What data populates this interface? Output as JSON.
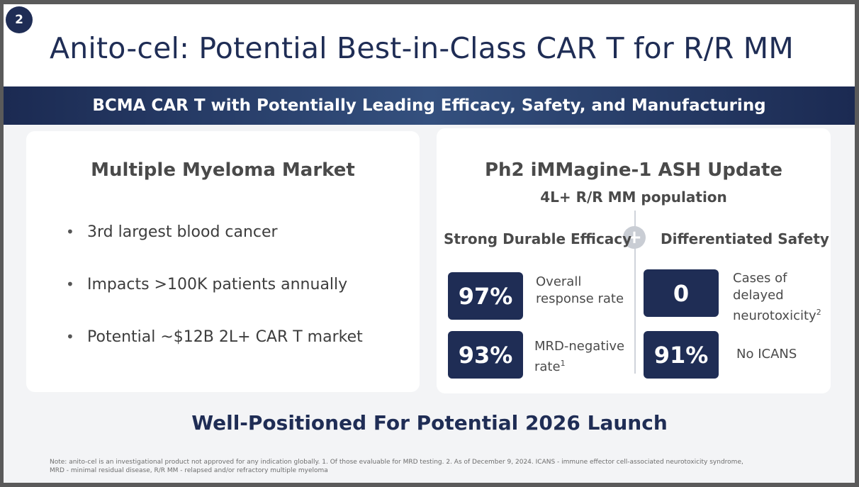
{
  "slide_number": "2",
  "title": "Anito-cel: Potential Best-in-Class CAR T for R/R MM",
  "banner": "BCMA CAR T with Potentially Leading Efficacy, Safety, and Manufacturing",
  "left_card": {
    "title": "Multiple Myeloma Market",
    "bullets": [
      "3rd largest blood cancer",
      "Impacts >100K patients annually",
      "Potential ~$12B 2L+ CAR T market"
    ]
  },
  "right_card": {
    "title": "Ph2 iMMagine-1 ASH Update",
    "subtitle": "4L+ R/R MM population",
    "plus_symbol": "+",
    "efficacy": {
      "heading": "Strong Durable Efficacy",
      "stats": [
        {
          "value": "97%",
          "label_line1": "Overall",
          "label_line2": "response rate",
          "sup": ""
        },
        {
          "value": "93%",
          "label_line1": "MRD-negative",
          "label_line2": "rate",
          "sup": "1"
        }
      ]
    },
    "safety": {
      "heading": "Differentiated Safety",
      "stats": [
        {
          "value": "0",
          "label_line1": "Cases of",
          "label_line2": "delayed",
          "label_line3": "neurotoxicity",
          "sup": "2"
        },
        {
          "value": "91%",
          "label_line1": "No ICANS"
        }
      ]
    }
  },
  "footer_title": "Well-Positioned For Potential 2026 Launch",
  "note_line1": "Note: anito-cel is an investigational product not approved for any indication globally. 1. Of those evaluable for MRD testing. 2. As of December 9, 2024.  ICANS - immune effector cell-associated neurotoxicity syndrome,",
  "note_line2": "MRD - minimal residual disease, R/R MM - relapsed and/or refractory multiple myeloma",
  "colors": {
    "navy": "#1f2d55",
    "banner_mid": "#34507e",
    "text_gray": "#4a4a4a",
    "panel_bg": "#f3f4f6"
  }
}
